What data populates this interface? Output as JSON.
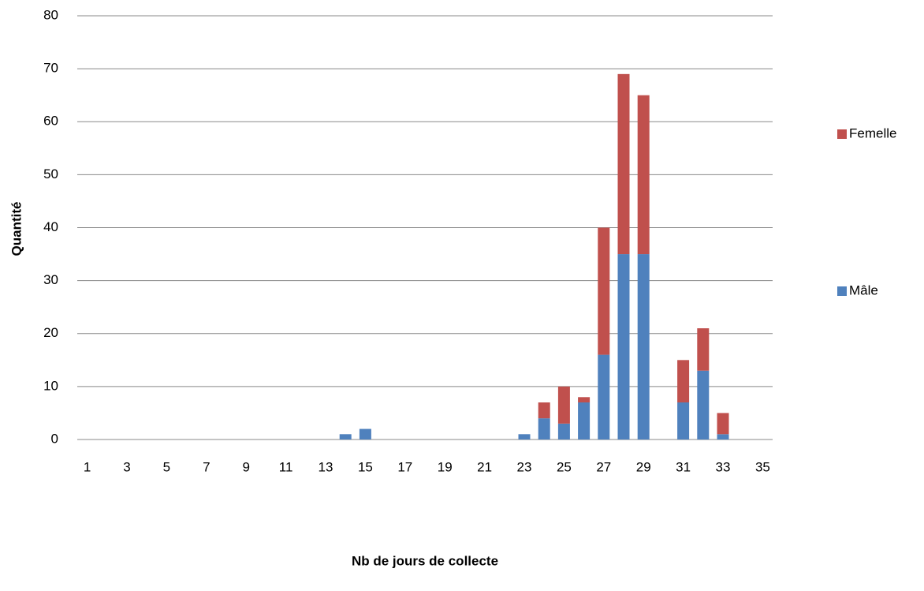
{
  "chart_data": {
    "type": "stacked_bar",
    "xlabel": "Nb de jours de collecte",
    "ylabel": "Quantité",
    "categories": [
      1,
      null,
      3,
      null,
      5,
      null,
      7,
      null,
      9,
      null,
      11,
      null,
      13,
      null,
      15,
      null,
      17,
      null,
      19,
      null,
      21,
      null,
      23,
      null,
      25,
      null,
      27,
      null,
      29,
      null,
      31,
      null,
      33,
      null,
      35
    ],
    "series": [
      {
        "name": "Mâle",
        "color": "#4f81bd",
        "values": [
          0,
          0,
          0,
          0,
          0,
          0,
          0,
          0,
          0,
          0,
          0,
          0,
          0,
          1,
          2,
          0,
          0,
          0,
          0,
          0,
          0,
          0,
          1,
          4,
          3,
          7,
          16,
          35,
          35,
          0,
          7,
          13,
          1,
          0,
          0
        ]
      },
      {
        "name": "Femelle",
        "color": "#c0504d",
        "values": [
          0,
          0,
          0,
          0,
          0,
          0,
          0,
          0,
          0,
          0,
          0,
          0,
          0,
          0,
          0,
          0,
          0,
          0,
          0,
          0,
          0,
          0,
          0,
          3,
          7,
          1,
          24,
          34,
          30,
          0,
          8,
          8,
          4,
          0,
          0
        ]
      }
    ],
    "ylim": [
      0,
      80
    ],
    "yticks": [
      0,
      10,
      20,
      30,
      40,
      50,
      60,
      70,
      80
    ],
    "grid": true,
    "legend": "right"
  }
}
